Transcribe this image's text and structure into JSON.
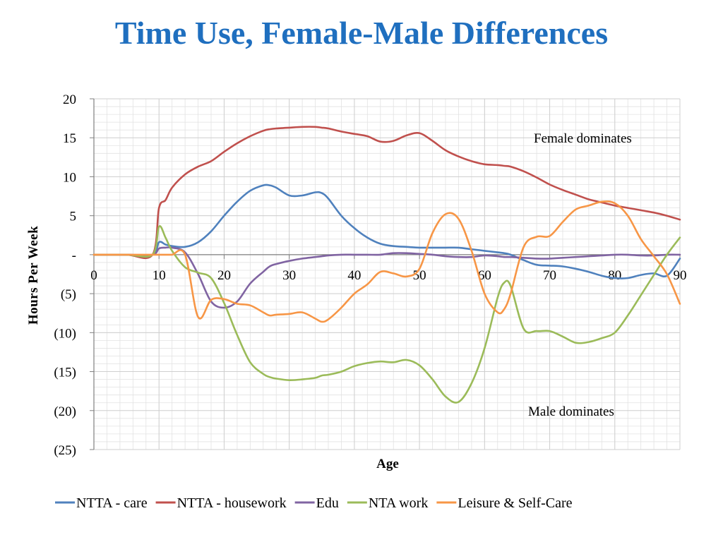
{
  "colors": {
    "title": "#1f6fbf",
    "care": "#4f81bd",
    "housework": "#c0504d",
    "edu": "#8064a2",
    "nta_work": "#9bbb59",
    "leisure": "#f79646",
    "grid": "#e2e2e2",
    "axis": "#808080",
    "text": "#000000"
  },
  "chart_data": {
    "type": "line",
    "title": "Time Use, Female-Male Differences",
    "xlabel": "Age",
    "ylabel": "Hours Per Week",
    "xlim": [
      0,
      90
    ],
    "ylim": [
      -25,
      20
    ],
    "x_ticks": [
      0,
      10,
      20,
      30,
      40,
      50,
      60,
      70,
      80,
      90
    ],
    "y_ticks": [
      20,
      15,
      10,
      5,
      0,
      -5,
      -10,
      -15,
      -20,
      -25
    ],
    "y_tick_labels": [
      "20",
      "15",
      "10",
      "5",
      "-",
      "(5)",
      "(10)",
      "(15)",
      "(20)",
      "(25)"
    ],
    "grid": true,
    "legend": "bottom",
    "annotations": [
      {
        "text": "Female dominates",
        "x": 76,
        "y": 15
      },
      {
        "text": "Male dominates",
        "x": 75,
        "y": -20
      }
    ],
    "x": [
      0,
      5,
      9,
      10,
      11,
      12,
      14,
      16,
      18,
      20,
      22,
      24,
      26,
      27,
      28,
      30,
      32,
      34,
      35,
      36,
      38,
      40,
      42,
      44,
      46,
      48,
      50,
      52,
      54,
      56,
      58,
      60,
      62,
      63,
      64,
      66,
      68,
      70,
      72,
      74,
      76,
      78,
      80,
      82,
      84,
      86,
      88,
      90
    ],
    "series": [
      {
        "name": "NTTA - care",
        "color_key": "care",
        "values": [
          0,
          0,
          0,
          1.6,
          1.3,
          1.1,
          1.0,
          1.6,
          3.0,
          5.0,
          6.8,
          8.2,
          8.9,
          8.9,
          8.6,
          7.6,
          7.6,
          8.0,
          7.9,
          7.2,
          5.0,
          3.4,
          2.2,
          1.4,
          1.1,
          1.0,
          0.9,
          0.9,
          0.9,
          0.9,
          0.7,
          0.5,
          0.3,
          0.2,
          0.0,
          -0.7,
          -1.3,
          -1.4,
          -1.5,
          -1.8,
          -2.2,
          -2.7,
          -3.0,
          -3.0,
          -2.6,
          -2.4,
          -2.7,
          -0.5
        ]
      },
      {
        "name": "NTTA - housework",
        "color_key": "housework",
        "values": [
          0,
          0,
          0,
          6.0,
          7.0,
          8.6,
          10.3,
          11.3,
          12.0,
          13.2,
          14.3,
          15.2,
          15.9,
          16.1,
          16.2,
          16.3,
          16.4,
          16.4,
          16.3,
          16.2,
          15.8,
          15.5,
          15.2,
          14.5,
          14.6,
          15.3,
          15.6,
          14.6,
          13.4,
          12.6,
          12.0,
          11.6,
          11.5,
          11.4,
          11.3,
          10.7,
          9.9,
          9.0,
          8.3,
          7.7,
          7.1,
          6.7,
          6.3,
          6.0,
          5.7,
          5.4,
          5.0,
          4.5
        ]
      },
      {
        "name": "Edu",
        "color_key": "edu",
        "values": [
          0,
          0,
          0,
          0.8,
          0.9,
          0.9,
          0.3,
          -2.5,
          -6.0,
          -6.8,
          -6.0,
          -3.7,
          -2.2,
          -1.5,
          -1.2,
          -0.8,
          -0.5,
          -0.3,
          -0.2,
          -0.1,
          0.0,
          0.0,
          0.0,
          0.0,
          0.2,
          0.2,
          0.1,
          0.0,
          -0.2,
          -0.3,
          -0.3,
          -0.1,
          -0.2,
          -0.3,
          -0.3,
          -0.4,
          -0.5,
          -0.5,
          -0.4,
          -0.3,
          -0.2,
          -0.1,
          0.0,
          0.0,
          -0.1,
          -0.1,
          0.0,
          0.0
        ]
      },
      {
        "name": "NTA work",
        "color_key": "nta_work",
        "values": [
          0,
          0,
          0,
          3.6,
          2.2,
          0.5,
          -1.6,
          -2.3,
          -3.0,
          -6.2,
          -10.3,
          -13.8,
          -15.3,
          -15.7,
          -15.9,
          -16.1,
          -16.0,
          -15.8,
          -15.5,
          -15.4,
          -15.0,
          -14.3,
          -13.9,
          -13.7,
          -13.8,
          -13.5,
          -14.2,
          -16.0,
          -18.2,
          -18.9,
          -16.5,
          -12.0,
          -5.5,
          -3.6,
          -4.0,
          -9.5,
          -9.8,
          -9.8,
          -10.5,
          -11.3,
          -11.2,
          -10.7,
          -10.0,
          -7.8,
          -5.2,
          -2.6,
          0.0,
          2.2
        ]
      },
      {
        "name": "Leisure & Self-Care",
        "color_key": "leisure",
        "values": [
          0,
          0,
          0,
          0,
          0,
          0,
          0,
          -8.0,
          -5.8,
          -5.7,
          -6.3,
          -6.5,
          -7.4,
          -7.8,
          -7.7,
          -7.6,
          -7.4,
          -8.2,
          -8.6,
          -8.3,
          -6.8,
          -5.0,
          -3.8,
          -2.2,
          -2.4,
          -2.8,
          -1.8,
          2.8,
          5.2,
          4.6,
          0.5,
          -5.0,
          -7.4,
          -7.0,
          -5.0,
          1.0,
          2.3,
          2.4,
          4.2,
          5.8,
          6.3,
          6.8,
          6.6,
          5.0,
          2.0,
          -0.2,
          -2.5,
          -6.3
        ]
      }
    ]
  }
}
